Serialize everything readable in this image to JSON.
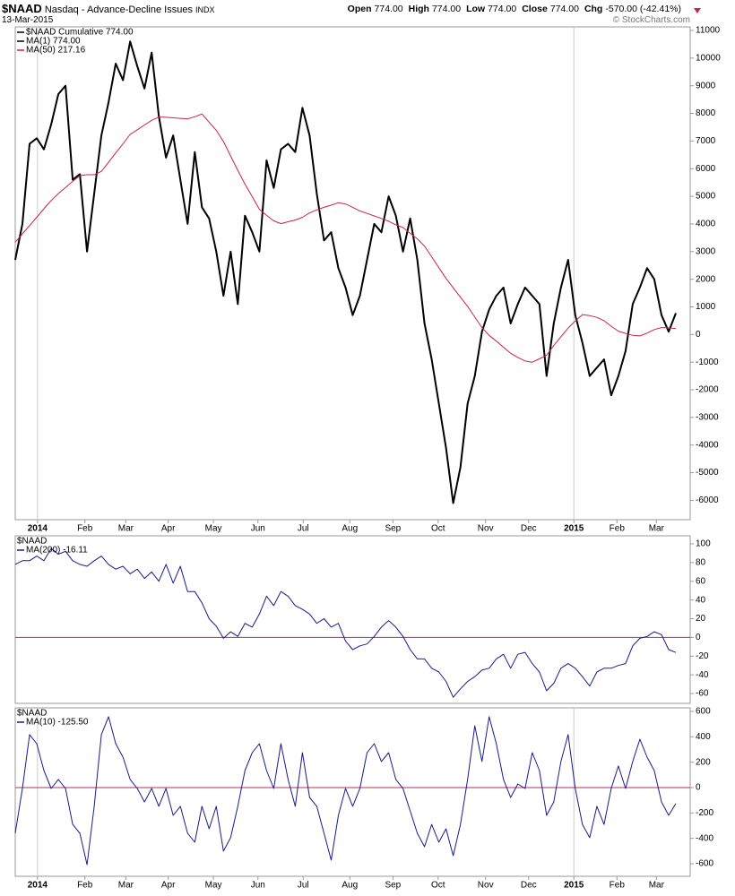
{
  "header": {
    "symbol": "$NAAD",
    "description": "Nasdaq - Advance-Decline Issues",
    "exchange": "INDX",
    "date": "13-Mar-2015",
    "quote": [
      {
        "label": "Open",
        "value": "774.00"
      },
      {
        "label": "High",
        "value": "774.00"
      },
      {
        "label": "Low",
        "value": "774.00"
      },
      {
        "label": "Close",
        "value": "774.00"
      },
      {
        "label": "Chg",
        "value": "-570.00 (-42.41%)"
      }
    ],
    "copyright": "© StockCharts.com"
  },
  "chart_data": [
    {
      "type": "line",
      "xlim": [
        0,
        94
      ],
      "ylim": [
        -6700,
        11130
      ],
      "xticks": [
        {
          "value": 3.1,
          "label": "2014"
        },
        {
          "value": 9.7,
          "label": "Feb"
        },
        {
          "value": 15.4,
          "label": "Mar"
        },
        {
          "value": 21.3,
          "label": "Apr"
        },
        {
          "value": 27.6,
          "label": "May"
        },
        {
          "value": 33.8,
          "label": "Jun"
        },
        {
          "value": 40.1,
          "label": "Jul"
        },
        {
          "value": 46.6,
          "label": "Aug"
        },
        {
          "value": 52.6,
          "label": "Sep"
        },
        {
          "value": 58.9,
          "label": "Oct"
        },
        {
          "value": 65.5,
          "label": "Nov"
        },
        {
          "value": 71.5,
          "label": "Dec"
        },
        {
          "value": 77.8,
          "label": "2015"
        },
        {
          "value": 83.8,
          "label": "Feb"
        },
        {
          "value": 89.3,
          "label": "Mar"
        }
      ],
      "yticks": [
        -6000,
        -5000,
        -4000,
        -3000,
        -2000,
        -1000,
        0,
        1000,
        2000,
        3000,
        4000,
        5000,
        6000,
        7000,
        8000,
        9000,
        10000,
        11000
      ],
      "x": [
        0,
        1,
        2,
        3,
        4,
        5,
        6,
        7,
        8,
        9,
        10,
        11,
        12,
        13,
        14,
        15,
        16,
        17,
        18,
        19,
        20,
        21,
        22,
        23,
        24,
        25,
        26,
        27,
        28,
        29,
        30,
        31,
        32,
        33,
        34,
        35,
        36,
        37,
        38,
        39,
        40,
        41,
        42,
        43,
        44,
        45,
        46,
        47,
        48,
        49,
        50,
        51,
        52,
        53,
        54,
        55,
        56,
        57,
        58,
        59,
        60,
        61,
        62,
        63,
        64,
        65,
        66,
        67,
        68,
        69,
        70,
        71,
        72,
        73,
        74,
        75,
        76,
        77,
        78,
        79,
        80,
        81,
        82,
        83,
        84,
        85,
        86,
        87,
        88,
        89,
        90,
        91,
        92
      ],
      "series": [
        {
          "name": "$NAAD Cumulative 774.00",
          "color": "#000000",
          "line_width": 2,
          "values": [
            2700,
            4000,
            6900,
            7100,
            6700,
            7600,
            8700,
            9000,
            5600,
            5800,
            3000,
            5100,
            7200,
            8400,
            9800,
            9200,
            10600,
            9700,
            8900,
            10200,
            7900,
            6400,
            7200,
            5600,
            4000,
            6600,
            4600,
            4200,
            3000,
            1400,
            3000,
            1100,
            4300,
            3700,
            3000,
            6300,
            5300,
            6700,
            6900,
            6600,
            8200,
            7200,
            5100,
            3400,
            3700,
            2400,
            1700,
            700,
            1400,
            2700,
            4000,
            3700,
            5000,
            4300,
            3000,
            4200,
            2700,
            400,
            -900,
            -2500,
            -4100,
            -6100,
            -4800,
            -2500,
            -1500,
            100,
            900,
            1400,
            1700,
            400,
            1100,
            1700,
            1400,
            1100,
            -1500,
            400,
            1700,
            2700,
            700,
            -300,
            -1500,
            -1200,
            -900,
            -2200,
            -1500,
            -600,
            1100,
            1700,
            2400,
            2000,
            700,
            100,
            774
          ]
        },
        {
          "name": "MA(1) 774.00",
          "color": "#000000",
          "line_width": 1,
          "values": [
            2700,
            4000,
            6900,
            7100,
            6700,
            7600,
            8700,
            9000,
            5600,
            5800,
            3000,
            5100,
            7200,
            8400,
            9800,
            9200,
            10600,
            9700,
            8900,
            10200,
            7900,
            6400,
            7200,
            5600,
            4000,
            6600,
            4600,
            4200,
            3000,
            1400,
            3000,
            1100,
            4300,
            3700,
            3000,
            6300,
            5300,
            6700,
            6900,
            6600,
            8200,
            7200,
            5100,
            3400,
            3700,
            2400,
            1700,
            700,
            1400,
            2700,
            4000,
            3700,
            5000,
            4300,
            3000,
            4200,
            2700,
            400,
            -900,
            -2500,
            -4100,
            -6100,
            -4800,
            -2500,
            -1500,
            100,
            900,
            1400,
            1700,
            400,
            1100,
            1700,
            1400,
            1100,
            -1500,
            400,
            1700,
            2700,
            700,
            -300,
            -1500,
            -1200,
            -900,
            -2200,
            -1500,
            -600,
            1100,
            1700,
            2400,
            2000,
            700,
            100,
            774
          ]
        },
        {
          "name": "MA(50) 217.16",
          "color": "#cc2244",
          "line_width": 1,
          "values": [
            3340,
            3640,
            3940,
            4240,
            4550,
            4850,
            5100,
            5320,
            5540,
            5750,
            5780,
            5780,
            5900,
            6230,
            6570,
            6900,
            7240,
            7410,
            7580,
            7750,
            7870,
            7860,
            7840,
            7820,
            7800,
            7880,
            7980,
            7680,
            7390,
            6980,
            6460,
            5940,
            5440,
            4990,
            4530,
            4310,
            4110,
            4010,
            4080,
            4140,
            4240,
            4400,
            4510,
            4600,
            4680,
            4770,
            4720,
            4600,
            4470,
            4380,
            4290,
            4200,
            4100,
            3970,
            3870,
            3660,
            3460,
            3200,
            2810,
            2420,
            2030,
            1690,
            1350,
            1020,
            630,
            250,
            -30,
            -240,
            -460,
            -680,
            -830,
            -960,
            -1000,
            -880,
            -750,
            -400,
            -80,
            230,
            490,
            720,
            680,
            620,
            500,
            300,
            120,
            40,
            -30,
            -50,
            50,
            180,
            250,
            240,
            217.16
          ]
        }
      ]
    },
    {
      "type": "line",
      "label": "$NAAD",
      "xlim": [
        0,
        94
      ],
      "ylim": [
        -70.5,
        108.6
      ],
      "yticks": [
        -60,
        -40,
        -20,
        0,
        20,
        40,
        60,
        80,
        100
      ],
      "hline": 0,
      "hline_color": "#b03060",
      "x": [
        0,
        1,
        2,
        3,
        4,
        5,
        6,
        7,
        8,
        9,
        10,
        11,
        12,
        13,
        14,
        15,
        16,
        17,
        18,
        19,
        20,
        21,
        22,
        23,
        24,
        25,
        26,
        27,
        28,
        29,
        30,
        31,
        32,
        33,
        34,
        35,
        36,
        37,
        38,
        39,
        40,
        41,
        42,
        43,
        44,
        45,
        46,
        47,
        48,
        49,
        50,
        51,
        52,
        53,
        54,
        55,
        56,
        57,
        58,
        59,
        60,
        61,
        62,
        63,
        64,
        65,
        66,
        67,
        68,
        69,
        70,
        71,
        72,
        73,
        74,
        75,
        76,
        77,
        78,
        79,
        80,
        81,
        82,
        83,
        84,
        85,
        86,
        87,
        88,
        89,
        90,
        91,
        92
      ],
      "series": [
        {
          "name": "MA(200) -16.11",
          "color": "#1a1a8c",
          "line_width": 1,
          "values": [
            78,
            82,
            82,
            87,
            82,
            95,
            89,
            92,
            82,
            78,
            76,
            82,
            87,
            78,
            73,
            76,
            68,
            73,
            63,
            70,
            60,
            78,
            58,
            76,
            49,
            49,
            37,
            20,
            12,
            -1,
            6,
            1,
            15,
            11,
            25,
            44,
            34,
            49,
            44,
            34,
            30,
            25,
            15,
            20,
            11,
            15,
            -4,
            -13,
            -9,
            -7,
            1,
            11,
            18,
            11,
            1,
            -13,
            -23,
            -23,
            -33,
            -37,
            -47,
            -64,
            -55,
            -47,
            -42,
            -35,
            -33,
            -23,
            -18,
            -33,
            -18,
            -16,
            -28,
            -37,
            -57,
            -49,
            -33,
            -28,
            -33,
            -42,
            -52,
            -37,
            -33,
            -33,
            -30,
            -28,
            -9,
            -1,
            1,
            6,
            3,
            -13,
            -16.11
          ]
        }
      ]
    },
    {
      "type": "line",
      "label": "$NAAD",
      "xlim": [
        0,
        94
      ],
      "ylim": [
        -699,
        628
      ],
      "yticks": [
        -600,
        -400,
        -200,
        0,
        200,
        400,
        600
      ],
      "hline": 0,
      "hline_color": "#b03060",
      "xticks": [
        {
          "value": 3.1,
          "label": "2014"
        },
        {
          "value": 9.7,
          "label": "Feb"
        },
        {
          "value": 15.4,
          "label": "Mar"
        },
        {
          "value": 21.3,
          "label": "Apr"
        },
        {
          "value": 27.6,
          "label": "May"
        },
        {
          "value": 33.8,
          "label": "Jun"
        },
        {
          "value": 40.1,
          "label": "Jul"
        },
        {
          "value": 46.6,
          "label": "Aug"
        },
        {
          "value": 52.6,
          "label": "Sep"
        },
        {
          "value": 58.9,
          "label": "Oct"
        },
        {
          "value": 65.5,
          "label": "Nov"
        },
        {
          "value": 71.5,
          "label": "Dec"
        },
        {
          "value": 77.8,
          "label": "2015"
        },
        {
          "value": 83.8,
          "label": "Feb"
        },
        {
          "value": 89.3,
          "label": "Mar"
        }
      ],
      "x": [
        0,
        1,
        2,
        3,
        4,
        5,
        6,
        7,
        8,
        9,
        10,
        11,
        12,
        13,
        14,
        15,
        16,
        17,
        18,
        19,
        20,
        21,
        22,
        23,
        24,
        25,
        26,
        27,
        28,
        29,
        30,
        31,
        32,
        33,
        34,
        35,
        36,
        37,
        38,
        39,
        40,
        41,
        42,
        43,
        44,
        45,
        46,
        47,
        48,
        49,
        50,
        51,
        52,
        53,
        54,
        55,
        56,
        57,
        58,
        59,
        60,
        61,
        62,
        63,
        64,
        65,
        66,
        67,
        68,
        69,
        70,
        71,
        72,
        73,
        74,
        75,
        76,
        77,
        78,
        79,
        80,
        81,
        82,
        83,
        84,
        85,
        86,
        87,
        88,
        89,
        90,
        91,
        92
      ],
      "series": [
        {
          "name": "MA(10) -125.50",
          "color": "#1a1a8c",
          "line_width": 1,
          "values": [
            -360,
            -7,
            417,
            346,
            134,
            -7,
            64,
            -7,
            -290,
            -360,
            -607,
            -148,
            417,
            558,
            346,
            240,
            64,
            -7,
            -113,
            -7,
            -148,
            -7,
            -219,
            -148,
            -360,
            -431,
            -148,
            -325,
            -148,
            -501,
            -395,
            -148,
            134,
            275,
            346,
            134,
            -7,
            346,
            64,
            -148,
            275,
            -78,
            -148,
            -360,
            -572,
            -219,
            -7,
            -148,
            -7,
            275,
            346,
            205,
            275,
            64,
            -7,
            -184,
            -360,
            -466,
            -290,
            -431,
            -325,
            -537,
            -290,
            64,
            487,
            205,
            558,
            346,
            64,
            -78,
            28,
            -7,
            275,
            134,
            -219,
            -113,
            205,
            417,
            -7,
            -290,
            -395,
            -148,
            -290,
            -7,
            170,
            -7,
            205,
            381,
            240,
            134,
            -113,
            -219,
            -125.5
          ]
        }
      ]
    }
  ]
}
